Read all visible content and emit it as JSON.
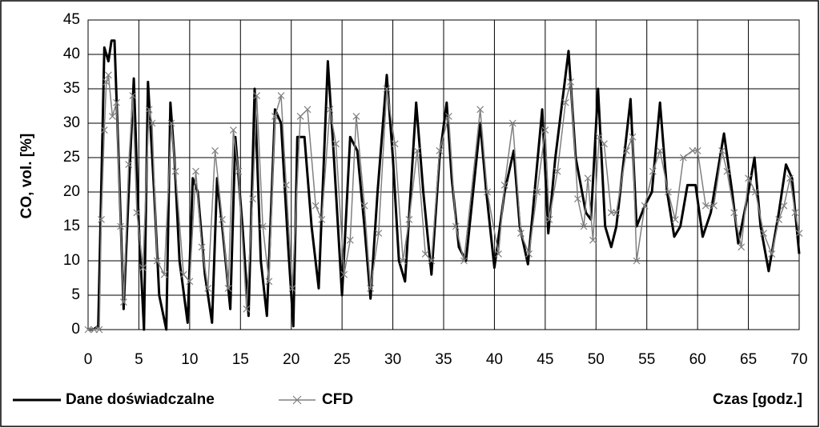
{
  "chart_data": {
    "type": "line",
    "xlabel": "Czas [godz.]",
    "ylabel": "CO, vol. [%]",
    "xlim": [
      0,
      70
    ],
    "xticks": [
      0,
      5,
      10,
      15,
      20,
      25,
      30,
      35,
      40,
      45,
      50,
      55,
      60,
      65,
      70
    ],
    "ylim": [
      0,
      45
    ],
    "yticks": [
      0,
      5,
      10,
      15,
      20,
      25,
      30,
      35,
      40,
      45
    ],
    "grid": true,
    "series": [
      {
        "name": "Dane doświadczalne",
        "color": "#000000",
        "x": [
          0,
          0.5,
          1,
          1.6,
          2,
          2.3,
          2.6,
          3,
          3.5,
          4,
          4.5,
          5,
          5.5,
          5.9,
          6.5,
          7,
          7.7,
          8.1,
          8.5,
          9,
          9.8,
          10.3,
          10.8,
          11.5,
          12.2,
          12.7,
          13.2,
          14,
          14.5,
          15.2,
          15.8,
          16.4,
          17,
          17.6,
          18.4,
          19,
          19.7,
          20.2,
          20.6,
          21.3,
          22,
          22.7,
          23.6,
          24.2,
          25,
          25.8,
          26.5,
          27.2,
          27.8,
          28.5,
          29.4,
          30,
          30.6,
          31.2,
          32.3,
          33,
          33.8,
          34.6,
          35.3,
          35.8,
          36.5,
          37.2,
          38.6,
          39.2,
          40,
          41,
          41.9,
          42.5,
          43.3,
          44.7,
          45.3,
          46,
          47.3,
          48,
          49,
          49.5,
          50.2,
          50.9,
          51.5,
          52,
          53.4,
          54,
          54.8,
          55.5,
          56.3,
          57,
          57.7,
          58.3,
          59,
          59.8,
          60.5,
          61.3,
          62.6,
          63.4,
          64,
          65,
          65.6,
          66.2,
          67,
          68,
          68.7,
          69.3,
          70
        ],
        "values": [
          0,
          0,
          0.5,
          41,
          39,
          42,
          42,
          25,
          3,
          20,
          36.5,
          15,
          0,
          36,
          20,
          5,
          0,
          33,
          25,
          10,
          1,
          22,
          20,
          8,
          1,
          22,
          15,
          3,
          28,
          15,
          2,
          35,
          10,
          2,
          32,
          30,
          12,
          0.5,
          28,
          28,
          15,
          6,
          39,
          25,
          5,
          28,
          26,
          15,
          4.5,
          20,
          37,
          25,
          10,
          7,
          33,
          20,
          8,
          25,
          33,
          22,
          12,
          10,
          30,
          20,
          9,
          20,
          26,
          15,
          9.5,
          32,
          14,
          25,
          40.5,
          25,
          17,
          16,
          35,
          15,
          12,
          15,
          33.5,
          15,
          18,
          20,
          33,
          20,
          13.5,
          15,
          21,
          21,
          13.5,
          17,
          28.5,
          20,
          12.5,
          20,
          25,
          15,
          8.5,
          17,
          24,
          22,
          11
        ]
      },
      {
        "name": "CFD",
        "color": "#808080",
        "x": [
          0,
          0.6,
          1.1,
          1.3,
          1.6,
          1.8,
          2,
          2.4,
          2.8,
          3.2,
          3.5,
          4,
          4.4,
          4.8,
          5.4,
          6,
          6.3,
          6.8,
          7.5,
          8.2,
          8.6,
          9.4,
          10,
          10.6,
          11.2,
          11.8,
          12.5,
          13.2,
          13.8,
          14.3,
          14.8,
          15.6,
          16.2,
          16.6,
          17.2,
          17.8,
          18.4,
          19,
          19.5,
          20.1,
          20.9,
          21.6,
          22.4,
          23,
          23.8,
          24.4,
          25.2,
          25.8,
          26.4,
          27.2,
          27.8,
          28.6,
          29.4,
          30.2,
          31,
          31.6,
          32.4,
          33.2,
          33.8,
          34.6,
          35.5,
          36.2,
          37,
          38.6,
          39.3,
          40.4,
          41,
          41.8,
          42.6,
          43.4,
          44.2,
          45,
          45.4,
          46.2,
          47,
          47.5,
          48.2,
          48.8,
          49.2,
          49.7,
          50.3,
          50.8,
          51.5,
          52,
          53,
          53.6,
          54,
          54.8,
          55.6,
          56.3,
          57.1,
          57.8,
          58.6,
          59.5,
          60,
          60.8,
          61.6,
          62.4,
          62.9,
          63.6,
          64.3,
          65,
          65.7,
          66.5,
          67.3,
          68,
          68.5,
          69.1,
          69.6,
          70
        ],
        "values": [
          0,
          0,
          0,
          16,
          29,
          36,
          37,
          31,
          33,
          15,
          4,
          24,
          34,
          17,
          9,
          32,
          30,
          10,
          8,
          30,
          23,
          8,
          7,
          23,
          12,
          6,
          26,
          16,
          6,
          29,
          23,
          3,
          19,
          34,
          15,
          7,
          31,
          34,
          21,
          6,
          31,
          32,
          18,
          16,
          32,
          27,
          8,
          13,
          31,
          18,
          6,
          14,
          35,
          27,
          10,
          16,
          26,
          11,
          10,
          26,
          31,
          15,
          10,
          32,
          20,
          11,
          21,
          30,
          14,
          11,
          20,
          29,
          16,
          23,
          33,
          36,
          19,
          15,
          22,
          13,
          28,
          27,
          17,
          17,
          26,
          28,
          10,
          18,
          23,
          26,
          20,
          16,
          25,
          26,
          26,
          18,
          18,
          26,
          23,
          17,
          12,
          22,
          20,
          14,
          11,
          16,
          18,
          22,
          17,
          14
        ]
      }
    ]
  }
}
